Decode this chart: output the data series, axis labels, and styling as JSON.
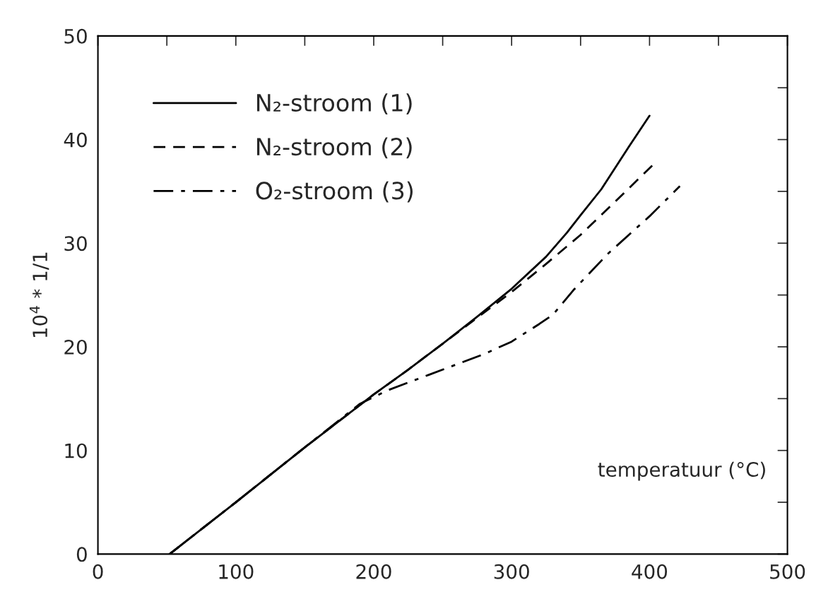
{
  "chart_data": {
    "type": "line",
    "xlabel": "temperatuur (°C)",
    "ylabel": "10$^{4}$ * 1/1",
    "xlim": [
      0,
      500
    ],
    "ylim": [
      0,
      50
    ],
    "xticks": [
      0,
      {
        "value": 50,
        "label": null
      },
      100,
      {
        "value": 150,
        "label": null
      },
      200,
      {
        "value": 250,
        "label": null
      },
      300,
      {
        "value": 350,
        "label": null
      },
      400,
      {
        "value": 450,
        "label": null
      },
      500
    ],
    "yticks": [
      0,
      {
        "value": 5,
        "label": null
      },
      10,
      {
        "value": 15,
        "label": null
      },
      20,
      {
        "value": 25,
        "label": null
      },
      30,
      {
        "value": 35,
        "label": null
      },
      40,
      {
        "value": 45,
        "label": null
      },
      50
    ],
    "grid": false,
    "legend": "top left",
    "series": [
      {
        "name": "N₂-stroom (1)",
        "color": "#000000",
        "line_style": "solid",
        "x": [
          52,
          100,
          150,
          200,
          225,
          250,
          275,
          300,
          325,
          340,
          350,
          365,
          385,
          400
        ],
        "values": [
          0,
          5,
          10.3,
          15.4,
          17.8,
          20.3,
          22.9,
          25.6,
          28.7,
          31,
          32.7,
          35.2,
          39.3,
          42.3
        ]
      },
      {
        "name": "N₂-stroom (2)",
        "color": "#000000",
        "line_style": "dashed",
        "x": [
          52,
          100,
          150,
          200,
          225,
          250,
          275,
          300,
          325,
          350,
          375,
          402
        ],
        "values": [
          0,
          5,
          10.3,
          15.4,
          17.8,
          20.3,
          22.8,
          25.3,
          28,
          30.8,
          34,
          37.5
        ]
      },
      {
        "name": "O₂-stroom (3)",
        "color": "#000000",
        "line_style": "dashdot",
        "x": [
          52,
          100,
          150,
          190,
          210,
          240,
          260,
          280,
          300,
          320,
          330,
          345,
          370,
          400,
          422
        ],
        "values": [
          0,
          5,
          10.3,
          14.5,
          15.8,
          17.3,
          18.3,
          19.3,
          20.5,
          22.2,
          23.1,
          25.5,
          29,
          32.6,
          35.5
        ]
      }
    ]
  }
}
